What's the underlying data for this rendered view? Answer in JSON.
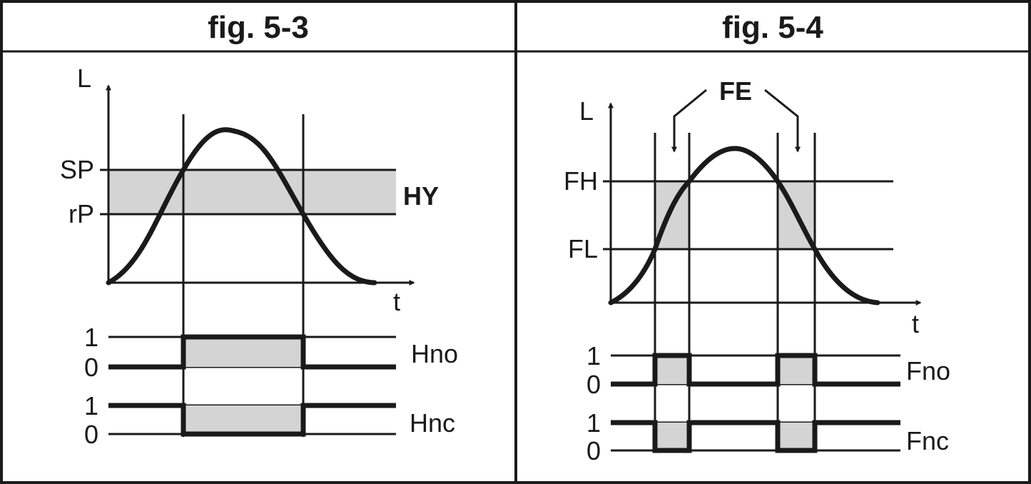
{
  "colors": {
    "ink": "#1a1a1a",
    "band_fill": "#d4d4d4",
    "background": "#ffffff"
  },
  "figure_left": {
    "header": "fig. 5-3",
    "y_axis_label": "L",
    "x_axis_label": "t",
    "level_high_label": "SP",
    "level_low_label": "rP",
    "band_label": "HY",
    "signals": [
      {
        "name": "Hno",
        "label_1": "1",
        "label_0": "0"
      },
      {
        "name": "Hnc",
        "label_1": "1",
        "label_0": "0"
      }
    ]
  },
  "figure_right": {
    "header": "fig. 5-4",
    "y_axis_label": "L",
    "x_axis_label": "t",
    "level_high_label": "FH",
    "level_low_label": "FL",
    "window_label": "FE",
    "signals": [
      {
        "name": "Fno",
        "label_1": "1",
        "label_0": "0"
      },
      {
        "name": "Fnc",
        "label_1": "1",
        "label_0": "0"
      }
    ]
  }
}
